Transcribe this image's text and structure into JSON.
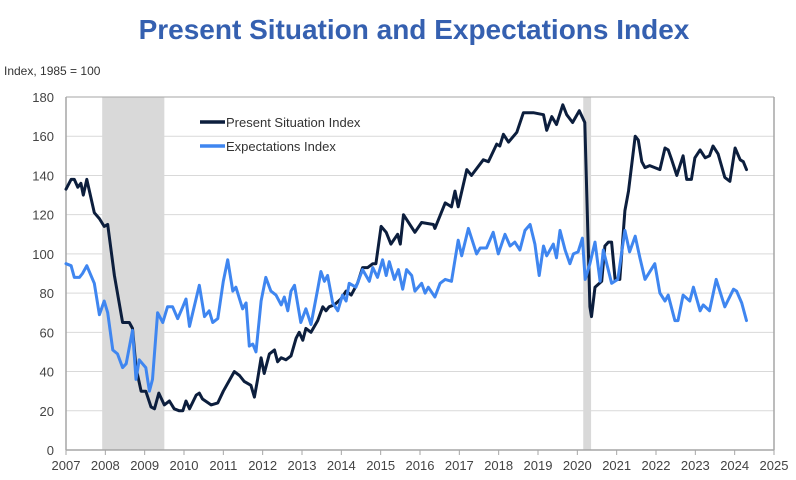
{
  "chart_data": {
    "type": "line",
    "title": "Present Situation and Expectations Index",
    "ylabel": "Index, 1985 = 100",
    "xlabel": "",
    "xlim": [
      2007,
      2025
    ],
    "ylim": [
      0,
      180
    ],
    "x_ticks": [
      "2007",
      "2008",
      "2009",
      "2010",
      "2011",
      "2012",
      "2013",
      "2014",
      "2015",
      "2016",
      "2017",
      "2018",
      "2019",
      "2020",
      "2021",
      "2022",
      "2023",
      "2024",
      "2025"
    ],
    "y_ticks": [
      "0",
      "20",
      "40",
      "60",
      "80",
      "100",
      "120",
      "140",
      "160",
      "180"
    ],
    "grid": true,
    "legend_position": "top-left inside",
    "recessions": [
      [
        2007.92,
        2009.5
      ],
      [
        2020.15,
        2020.35
      ]
    ],
    "colors": {
      "recession": "#d9d9d9",
      "grid": "#d9d9d9",
      "axis": "#a6a6a6"
    },
    "series": [
      {
        "name": "Present Situation Index",
        "color": "#0c1e3d",
        "points": [
          [
            2007.0,
            133
          ],
          [
            2007.13,
            138
          ],
          [
            2007.21,
            138
          ],
          [
            2007.3,
            134
          ],
          [
            2007.38,
            136
          ],
          [
            2007.44,
            130
          ],
          [
            2007.53,
            138
          ],
          [
            2007.72,
            121
          ],
          [
            2007.85,
            118
          ],
          [
            2007.97,
            114
          ],
          [
            2008.06,
            115
          ],
          [
            2008.23,
            89
          ],
          [
            2008.44,
            65
          ],
          [
            2008.61,
            65
          ],
          [
            2008.69,
            62
          ],
          [
            2008.78,
            42
          ],
          [
            2008.91,
            30
          ],
          [
            2009.03,
            30
          ],
          [
            2009.16,
            22
          ],
          [
            2009.25,
            21
          ],
          [
            2009.36,
            29
          ],
          [
            2009.5,
            23
          ],
          [
            2009.63,
            25
          ],
          [
            2009.75,
            21
          ],
          [
            2009.88,
            20
          ],
          [
            2009.97,
            20
          ],
          [
            2010.05,
            25
          ],
          [
            2010.14,
            21
          ],
          [
            2010.31,
            28
          ],
          [
            2010.39,
            29
          ],
          [
            2010.47,
            26
          ],
          [
            2010.69,
            23
          ],
          [
            2010.86,
            24
          ],
          [
            2011.0,
            30
          ],
          [
            2011.28,
            40
          ],
          [
            2011.41,
            38
          ],
          [
            2011.53,
            35
          ],
          [
            2011.7,
            33
          ],
          [
            2011.79,
            27
          ],
          [
            2011.87,
            36
          ],
          [
            2011.96,
            47
          ],
          [
            2012.04,
            39
          ],
          [
            2012.17,
            49
          ],
          [
            2012.3,
            51
          ],
          [
            2012.38,
            45
          ],
          [
            2012.47,
            47
          ],
          [
            2012.59,
            46
          ],
          [
            2012.72,
            48
          ],
          [
            2012.85,
            57
          ],
          [
            2012.93,
            60
          ],
          [
            2013.02,
            56
          ],
          [
            2013.1,
            62
          ],
          [
            2013.23,
            60
          ],
          [
            2013.4,
            66
          ],
          [
            2013.53,
            73
          ],
          [
            2013.61,
            71
          ],
          [
            2013.69,
            73
          ],
          [
            2013.82,
            74
          ],
          [
            2013.99,
            77
          ],
          [
            2014.12,
            81
          ],
          [
            2014.25,
            79
          ],
          [
            2014.41,
            85
          ],
          [
            2014.54,
            93
          ],
          [
            2014.67,
            93
          ],
          [
            2014.8,
            95
          ],
          [
            2014.88,
            95
          ],
          [
            2015.01,
            114
          ],
          [
            2015.14,
            111
          ],
          [
            2015.26,
            105
          ],
          [
            2015.43,
            110
          ],
          [
            2015.5,
            105
          ],
          [
            2015.58,
            120
          ],
          [
            2015.87,
            111
          ],
          [
            2016.04,
            116
          ],
          [
            2016.34,
            115
          ],
          [
            2016.38,
            113
          ],
          [
            2016.64,
            126
          ],
          [
            2016.8,
            124
          ],
          [
            2016.89,
            132
          ],
          [
            2016.97,
            124
          ],
          [
            2017.19,
            143
          ],
          [
            2017.31,
            140
          ],
          [
            2017.61,
            148
          ],
          [
            2017.74,
            147
          ],
          [
            2017.95,
            156
          ],
          [
            2018.03,
            155
          ],
          [
            2018.12,
            161
          ],
          [
            2018.25,
            157
          ],
          [
            2018.46,
            162
          ],
          [
            2018.63,
            172
          ],
          [
            2018.88,
            172
          ],
          [
            2019.14,
            171
          ],
          [
            2019.22,
            163
          ],
          [
            2019.35,
            170
          ],
          [
            2019.47,
            166
          ],
          [
            2019.63,
            176
          ],
          [
            2019.73,
            171
          ],
          [
            2019.88,
            167
          ],
          [
            2020.05,
            173
          ],
          [
            2020.19,
            167
          ],
          [
            2020.32,
            73
          ],
          [
            2020.36,
            68
          ],
          [
            2020.45,
            83
          ],
          [
            2020.62,
            86
          ],
          [
            2020.7,
            104
          ],
          [
            2020.79,
            106
          ],
          [
            2020.87,
            106
          ],
          [
            2020.96,
            87
          ],
          [
            2021.08,
            87
          ],
          [
            2021.21,
            122
          ],
          [
            2021.3,
            132
          ],
          [
            2021.47,
            160
          ],
          [
            2021.55,
            158
          ],
          [
            2021.64,
            147
          ],
          [
            2021.72,
            144
          ],
          [
            2021.84,
            145
          ],
          [
            2022.1,
            143
          ],
          [
            2022.23,
            154
          ],
          [
            2022.31,
            153
          ],
          [
            2022.4,
            148
          ],
          [
            2022.53,
            140
          ],
          [
            2022.69,
            150
          ],
          [
            2022.78,
            138
          ],
          [
            2022.9,
            138
          ],
          [
            2022.99,
            149
          ],
          [
            2023.12,
            153
          ],
          [
            2023.25,
            149
          ],
          [
            2023.36,
            150
          ],
          [
            2023.45,
            155
          ],
          [
            2023.58,
            151
          ],
          [
            2023.75,
            139
          ],
          [
            2023.88,
            137
          ],
          [
            2024.01,
            154
          ],
          [
            2024.14,
            148
          ],
          [
            2024.22,
            147
          ],
          [
            2024.3,
            143
          ]
        ]
      },
      {
        "name": "Expectations Index",
        "color": "#3f86f0",
        "points": [
          [
            2007.0,
            95
          ],
          [
            2007.13,
            94
          ],
          [
            2007.21,
            88
          ],
          [
            2007.34,
            88
          ],
          [
            2007.42,
            90
          ],
          [
            2007.53,
            94
          ],
          [
            2007.72,
            85
          ],
          [
            2007.85,
            69
          ],
          [
            2007.97,
            76
          ],
          [
            2008.06,
            70
          ],
          [
            2008.19,
            51
          ],
          [
            2008.31,
            49
          ],
          [
            2008.44,
            42
          ],
          [
            2008.53,
            44
          ],
          [
            2008.69,
            61
          ],
          [
            2008.78,
            36
          ],
          [
            2008.86,
            46
          ],
          [
            2009.03,
            42
          ],
          [
            2009.12,
            30
          ],
          [
            2009.2,
            36
          ],
          [
            2009.33,
            70
          ],
          [
            2009.46,
            65
          ],
          [
            2009.58,
            73
          ],
          [
            2009.71,
            73
          ],
          [
            2009.84,
            67
          ],
          [
            2009.97,
            73
          ],
          [
            2010.05,
            77
          ],
          [
            2010.14,
            63
          ],
          [
            2010.39,
            84
          ],
          [
            2010.52,
            68
          ],
          [
            2010.64,
            71
          ],
          [
            2010.73,
            65
          ],
          [
            2010.86,
            67
          ],
          [
            2011.0,
            86
          ],
          [
            2011.11,
            97
          ],
          [
            2011.24,
            81
          ],
          [
            2011.32,
            83
          ],
          [
            2011.49,
            72
          ],
          [
            2011.58,
            75
          ],
          [
            2011.66,
            53
          ],
          [
            2011.75,
            54
          ],
          [
            2011.83,
            50
          ],
          [
            2011.96,
            76
          ],
          [
            2012.08,
            88
          ],
          [
            2012.21,
            81
          ],
          [
            2012.34,
            79
          ],
          [
            2012.47,
            74
          ],
          [
            2012.55,
            78
          ],
          [
            2012.64,
            71
          ],
          [
            2012.72,
            81
          ],
          [
            2012.81,
            84
          ],
          [
            2012.97,
            65
          ],
          [
            2013.1,
            72
          ],
          [
            2013.23,
            64
          ],
          [
            2013.4,
            82
          ],
          [
            2013.48,
            91
          ],
          [
            2013.57,
            86
          ],
          [
            2013.65,
            89
          ],
          [
            2013.78,
            75
          ],
          [
            2013.91,
            71
          ],
          [
            2014.03,
            79
          ],
          [
            2014.12,
            76
          ],
          [
            2014.2,
            85
          ],
          [
            2014.37,
            83
          ],
          [
            2014.54,
            92
          ],
          [
            2014.71,
            86
          ],
          [
            2014.8,
            93
          ],
          [
            2014.92,
            88
          ],
          [
            2015.05,
            97
          ],
          [
            2015.14,
            89
          ],
          [
            2015.22,
            96
          ],
          [
            2015.35,
            87
          ],
          [
            2015.45,
            92
          ],
          [
            2015.56,
            82
          ],
          [
            2015.66,
            92
          ],
          [
            2015.79,
            89
          ],
          [
            2015.87,
            81
          ],
          [
            2016.04,
            85
          ],
          [
            2016.13,
            80
          ],
          [
            2016.21,
            83
          ],
          [
            2016.38,
            78
          ],
          [
            2016.51,
            85
          ],
          [
            2016.64,
            87
          ],
          [
            2016.8,
            86
          ],
          [
            2016.97,
            107
          ],
          [
            2017.06,
            99
          ],
          [
            2017.23,
            113
          ],
          [
            2017.44,
            100
          ],
          [
            2017.53,
            103
          ],
          [
            2017.69,
            103
          ],
          [
            2017.86,
            111
          ],
          [
            2017.99,
            100
          ],
          [
            2018.16,
            110
          ],
          [
            2018.29,
            104
          ],
          [
            2018.41,
            106
          ],
          [
            2018.54,
            102
          ],
          [
            2018.67,
            112
          ],
          [
            2018.8,
            115
          ],
          [
            2018.92,
            105
          ],
          [
            2019.03,
            89
          ],
          [
            2019.14,
            104
          ],
          [
            2019.22,
            99
          ],
          [
            2019.39,
            105
          ],
          [
            2019.47,
            98
          ],
          [
            2019.56,
            112
          ],
          [
            2019.69,
            102
          ],
          [
            2019.81,
            95
          ],
          [
            2019.9,
            100
          ],
          [
            2020.02,
            101
          ],
          [
            2020.13,
            108
          ],
          [
            2020.2,
            87
          ],
          [
            2020.32,
            95
          ],
          [
            2020.45,
            106
          ],
          [
            2020.58,
            86
          ],
          [
            2020.66,
            102
          ],
          [
            2020.87,
            85
          ],
          [
            2021.03,
            87
          ],
          [
            2021.21,
            112
          ],
          [
            2021.33,
            101
          ],
          [
            2021.47,
            109
          ],
          [
            2021.59,
            98
          ],
          [
            2021.72,
            87
          ],
          [
            2021.97,
            95
          ],
          [
            2022.1,
            80
          ],
          [
            2022.23,
            76
          ],
          [
            2022.31,
            79
          ],
          [
            2022.48,
            66
          ],
          [
            2022.56,
            66
          ],
          [
            2022.69,
            79
          ],
          [
            2022.86,
            76
          ],
          [
            2022.95,
            83
          ],
          [
            2023.12,
            71
          ],
          [
            2023.2,
            74
          ],
          [
            2023.36,
            71
          ],
          [
            2023.53,
            87
          ],
          [
            2023.75,
            73
          ],
          [
            2023.97,
            82
          ],
          [
            2024.05,
            81
          ],
          [
            2024.18,
            75
          ],
          [
            2024.3,
            66
          ]
        ]
      }
    ]
  }
}
